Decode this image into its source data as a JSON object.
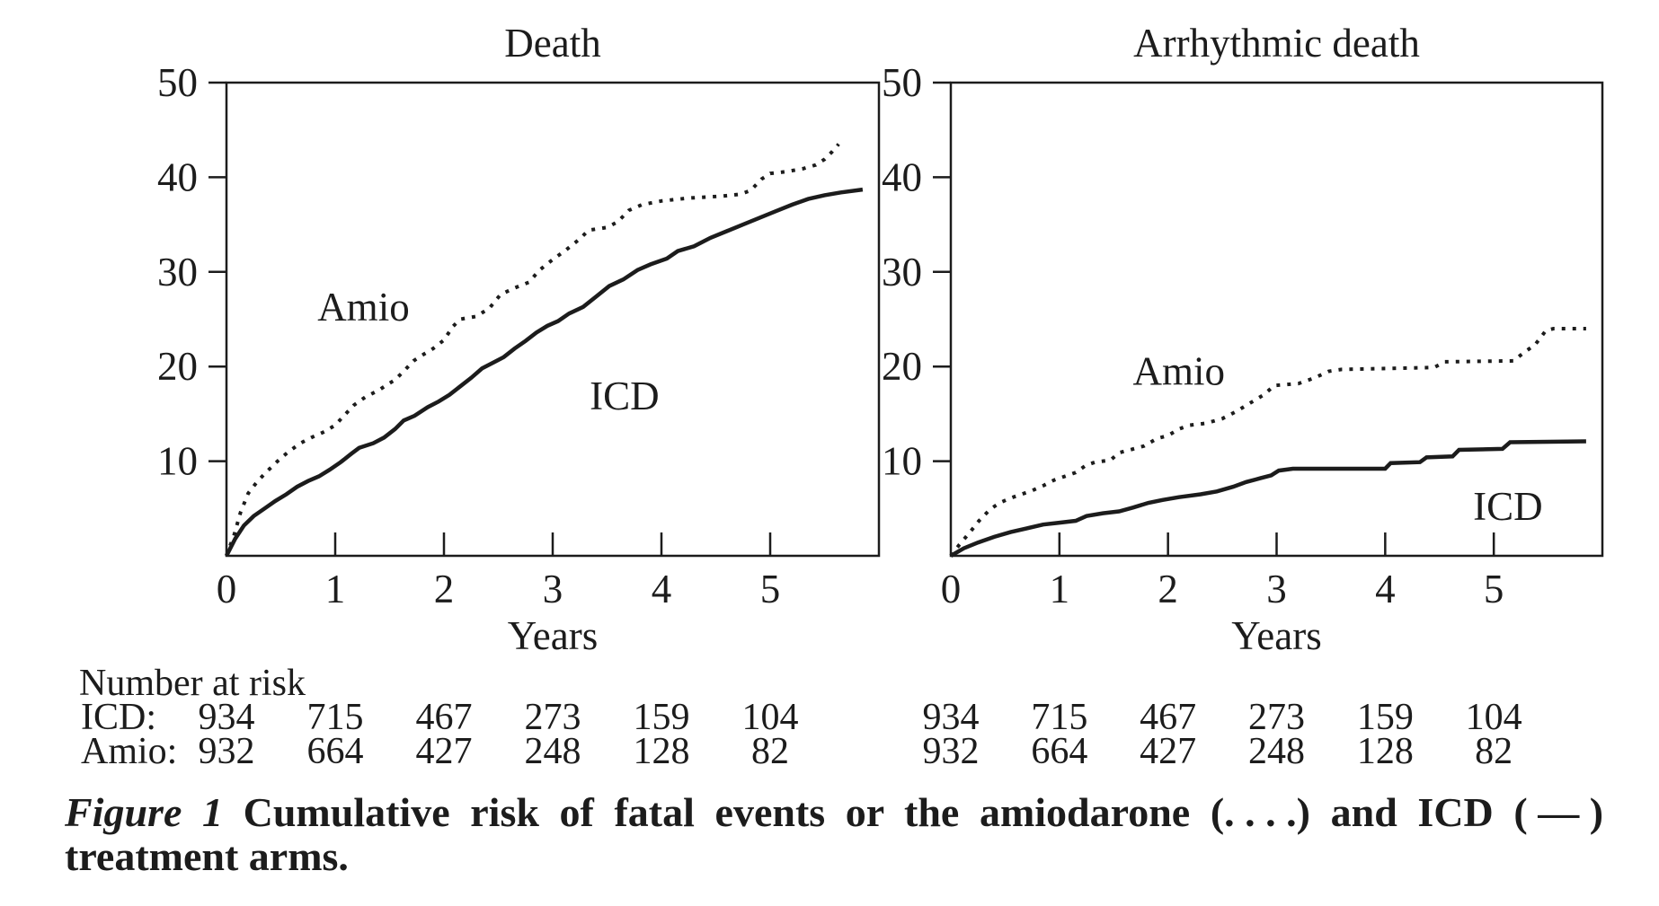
{
  "figure": {
    "caption": {
      "label": "Figure 1",
      "part1": "Cumulative risk of fatal events or the amiodarone",
      "dotted_marker": "(. . . .)",
      "part2": "and ICD",
      "solid_marker": "( — )",
      "line2": "treatment arms."
    }
  },
  "colors": {
    "ink": "#1c1c1c",
    "background": "#ffffff"
  },
  "at_risk": {
    "header": "Number at risk",
    "rows": [
      {
        "label": "ICD:",
        "values": [
          "934",
          "715",
          "467",
          "273",
          "159",
          "104"
        ]
      },
      {
        "label": "Amio:",
        "values": [
          "932",
          "664",
          "427",
          "248",
          "128",
          "82"
        ]
      }
    ]
  },
  "chart_data": [
    {
      "type": "line",
      "title": "Death",
      "xlabel": "Years",
      "ylabel": "",
      "xlim": [
        0,
        6
      ],
      "ylim": [
        0,
        50
      ],
      "xticks": [
        0,
        1,
        2,
        3,
        4,
        5
      ],
      "yticks": [
        10,
        20,
        30,
        40,
        50
      ],
      "grid": false,
      "legend_position": "in-plot-annotations",
      "annotations": [
        {
          "text": "Amio",
          "x": 1.26,
          "y": 26.3
        },
        {
          "text": "ICD",
          "x": 3.66,
          "y": 16.9
        }
      ],
      "series": [
        {
          "name": "Amio",
          "style": "dotted",
          "points": [
            [
              0,
              0
            ],
            [
              0.07,
              2.2
            ],
            [
              0.13,
              4.6
            ],
            [
              0.2,
              6.6
            ],
            [
              0.28,
              7.8
            ],
            [
              0.37,
              8.9
            ],
            [
              0.47,
              10
            ],
            [
              0.57,
              11
            ],
            [
              0.68,
              11.9
            ],
            [
              0.78,
              12.5
            ],
            [
              0.9,
              13.1
            ],
            [
              1.0,
              13.8
            ],
            [
              1.08,
              14.8
            ],
            [
              1.17,
              15.9
            ],
            [
              1.28,
              16.8
            ],
            [
              1.4,
              17.5
            ],
            [
              1.48,
              18.1
            ],
            [
              1.55,
              18.6
            ],
            [
              1.63,
              19.5
            ],
            [
              1.72,
              20.6
            ],
            [
              1.8,
              21.2
            ],
            [
              1.9,
              21.9
            ],
            [
              2.0,
              22.8
            ],
            [
              2.08,
              24.2
            ],
            [
              2.15,
              25
            ],
            [
              2.3,
              25.3
            ],
            [
              2.42,
              26.2
            ],
            [
              2.52,
              27.6
            ],
            [
              2.65,
              28.3
            ],
            [
              2.78,
              28.9
            ],
            [
              2.88,
              30.2
            ],
            [
              3.0,
              31.3
            ],
            [
              3.12,
              32.3
            ],
            [
              3.25,
              33.5
            ],
            [
              3.33,
              34.4
            ],
            [
              3.5,
              34.7
            ],
            [
              3.6,
              35.3
            ],
            [
              3.7,
              36.5
            ],
            [
              3.82,
              37.1
            ],
            [
              4.0,
              37.5
            ],
            [
              4.25,
              37.8
            ],
            [
              4.55,
              38
            ],
            [
              4.72,
              38.2
            ],
            [
              4.82,
              38.6
            ],
            [
              4.92,
              39.8
            ],
            [
              5.0,
              40.4
            ],
            [
              5.15,
              40.6
            ],
            [
              5.3,
              40.9
            ],
            [
              5.42,
              41.3
            ],
            [
              5.5,
              41.9
            ],
            [
              5.57,
              42.7
            ],
            [
              5.63,
              43.5
            ]
          ]
        },
        {
          "name": "ICD",
          "style": "solid",
          "points": [
            [
              0,
              0
            ],
            [
              0.08,
              1.8
            ],
            [
              0.16,
              3.2
            ],
            [
              0.25,
              4.2
            ],
            [
              0.35,
              5
            ],
            [
              0.45,
              5.8
            ],
            [
              0.55,
              6.5
            ],
            [
              0.65,
              7.3
            ],
            [
              0.75,
              7.9
            ],
            [
              0.85,
              8.4
            ],
            [
              0.95,
              9.1
            ],
            [
              1.05,
              9.9
            ],
            [
              1.15,
              10.8
            ],
            [
              1.22,
              11.4
            ],
            [
              1.35,
              11.9
            ],
            [
              1.45,
              12.5
            ],
            [
              1.55,
              13.4
            ],
            [
              1.63,
              14.3
            ],
            [
              1.73,
              14.8
            ],
            [
              1.85,
              15.7
            ],
            [
              1.95,
              16.3
            ],
            [
              2.05,
              17
            ],
            [
              2.15,
              17.9
            ],
            [
              2.25,
              18.8
            ],
            [
              2.35,
              19.8
            ],
            [
              2.45,
              20.4
            ],
            [
              2.55,
              21
            ],
            [
              2.65,
              21.9
            ],
            [
              2.75,
              22.7
            ],
            [
              2.85,
              23.6
            ],
            [
              2.95,
              24.3
            ],
            [
              3.05,
              24.8
            ],
            [
              3.15,
              25.6
            ],
            [
              3.28,
              26.3
            ],
            [
              3.4,
              27.4
            ],
            [
              3.52,
              28.5
            ],
            [
              3.65,
              29.2
            ],
            [
              3.78,
              30.2
            ],
            [
              3.9,
              30.8
            ],
            [
              4.05,
              31.4
            ],
            [
              4.15,
              32.2
            ],
            [
              4.3,
              32.7
            ],
            [
              4.45,
              33.6
            ],
            [
              4.6,
              34.3
            ],
            [
              4.75,
              35
            ],
            [
              4.9,
              35.7
            ],
            [
              5.05,
              36.4
            ],
            [
              5.2,
              37.1
            ],
            [
              5.35,
              37.7
            ],
            [
              5.5,
              38.1
            ],
            [
              5.65,
              38.4
            ],
            [
              5.85,
              38.7
            ]
          ]
        }
      ]
    },
    {
      "type": "line",
      "title": "Arrhythmic death",
      "xlabel": "Years",
      "ylabel": "",
      "xlim": [
        0,
        6
      ],
      "ylim": [
        0,
        50
      ],
      "xticks": [
        0,
        1,
        2,
        3,
        4,
        5
      ],
      "yticks": [
        10,
        20,
        30,
        40,
        50
      ],
      "grid": false,
      "legend_position": "in-plot-annotations",
      "annotations": [
        {
          "text": "Amio",
          "x": 2.1,
          "y": 19.5
        },
        {
          "text": "ICD",
          "x": 5.13,
          "y": 5.2
        }
      ],
      "series": [
        {
          "name": "Amio",
          "style": "dotted",
          "points": [
            [
              0,
              0
            ],
            [
              0.08,
              1.2
            ],
            [
              0.17,
              2.4
            ],
            [
              0.26,
              3.7
            ],
            [
              0.36,
              4.9
            ],
            [
              0.45,
              5.6
            ],
            [
              0.55,
              6.1
            ],
            [
              0.65,
              6.5
            ],
            [
              0.75,
              6.9
            ],
            [
              0.85,
              7.4
            ],
            [
              0.95,
              8
            ],
            [
              1.05,
              8.4
            ],
            [
              1.15,
              8.8
            ],
            [
              1.25,
              9.6
            ],
            [
              1.33,
              9.9
            ],
            [
              1.47,
              10.1
            ],
            [
              1.55,
              10.9
            ],
            [
              1.65,
              11.2
            ],
            [
              1.78,
              11.6
            ],
            [
              1.9,
              12.4
            ],
            [
              2.0,
              12.7
            ],
            [
              2.1,
              13.4
            ],
            [
              2.2,
              13.8
            ],
            [
              2.35,
              14
            ],
            [
              2.5,
              14.5
            ],
            [
              2.62,
              15.2
            ],
            [
              2.75,
              16.1
            ],
            [
              2.88,
              17
            ],
            [
              2.98,
              18
            ],
            [
              3.2,
              18.2
            ],
            [
              3.35,
              18.8
            ],
            [
              3.48,
              19.5
            ],
            [
              3.6,
              19.7
            ],
            [
              4.45,
              19.9
            ],
            [
              4.55,
              20.5
            ],
            [
              5.18,
              20.6
            ],
            [
              5.28,
              21.5
            ],
            [
              5.38,
              22.3
            ],
            [
              5.48,
              23.8
            ],
            [
              5.55,
              24
            ],
            [
              5.85,
              24
            ]
          ]
        },
        {
          "name": "ICD",
          "style": "solid",
          "points": [
            [
              0,
              0
            ],
            [
              0.12,
              0.8
            ],
            [
              0.25,
              1.4
            ],
            [
              0.4,
              2
            ],
            [
              0.55,
              2.5
            ],
            [
              0.7,
              2.9
            ],
            [
              0.85,
              3.3
            ],
            [
              1.0,
              3.5
            ],
            [
              1.15,
              3.7
            ],
            [
              1.25,
              4.2
            ],
            [
              1.4,
              4.5
            ],
            [
              1.55,
              4.7
            ],
            [
              1.68,
              5.1
            ],
            [
              1.82,
              5.6
            ],
            [
              1.95,
              5.9
            ],
            [
              2.1,
              6.2
            ],
            [
              2.3,
              6.5
            ],
            [
              2.45,
              6.8
            ],
            [
              2.6,
              7.3
            ],
            [
              2.72,
              7.8
            ],
            [
              2.85,
              8.2
            ],
            [
              2.95,
              8.5
            ],
            [
              3.02,
              9
            ],
            [
              3.15,
              9.2
            ],
            [
              4.0,
              9.2
            ],
            [
              4.05,
              9.8
            ],
            [
              4.32,
              9.9
            ],
            [
              4.38,
              10.4
            ],
            [
              4.62,
              10.5
            ],
            [
              4.68,
              11.2
            ],
            [
              5.08,
              11.3
            ],
            [
              5.15,
              12
            ],
            [
              5.85,
              12.1
            ]
          ]
        }
      ]
    }
  ]
}
